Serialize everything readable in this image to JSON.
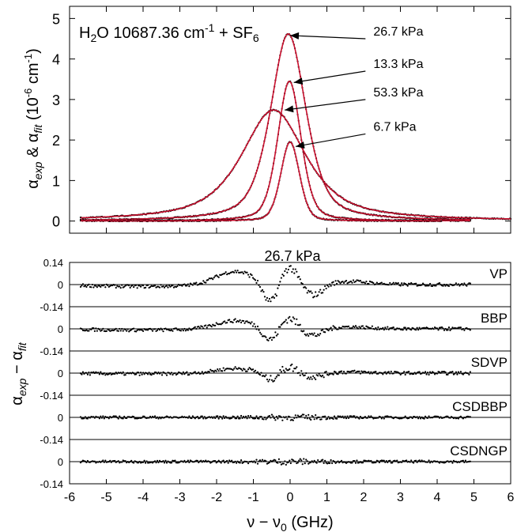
{
  "chart_data": [
    {
      "type": "line",
      "title": "",
      "annotation": {
        "prefix": "H",
        "sub1": "2",
        "mid": "O  10687.36 cm",
        "sup": "-1",
        "plus": " + SF",
        "sub2": "6"
      },
      "ylabel": {
        "a": "α",
        "exp": "exp",
        "amp": " & ",
        "fit": "fit",
        "unit_open": "  (10",
        "unit_sup": "-6",
        "unit_mid": " cm",
        "unit_sup2": "-1",
        "unit_close": ")"
      },
      "xlim": [
        -6,
        6
      ],
      "ylim": [
        -0.3,
        5.3
      ],
      "yticks": [
        0,
        1,
        2,
        3,
        4,
        5
      ],
      "series": [
        {
          "name": "26.7 kPa",
          "center": -0.05,
          "peak": 4.62,
          "fwhm": 1.15,
          "eta": 0.55,
          "x_range": [
            -5.7,
            4.9
          ]
        },
        {
          "name": "13.3 kPa",
          "center": -0.02,
          "peak": 3.45,
          "fwhm": 0.75,
          "eta": 0.35,
          "x_range": [
            -5.7,
            4.9
          ]
        },
        {
          "name": "53.3 kPa",
          "center": -0.45,
          "peak": 2.74,
          "fwhm": 2.1,
          "eta": 0.75,
          "x_range": [
            -5.7,
            6.0
          ]
        },
        {
          "name": "6.7 kPa",
          "center": 0.0,
          "peak": 1.95,
          "fwhm": 0.6,
          "eta": 0.25,
          "x_range": [
            -4.9,
            4.1
          ]
        }
      ],
      "arrow_labels": [
        {
          "text": "26.7 kPa",
          "from": [
            2.05,
            4.5
          ],
          "to": [
            0.0,
            4.58
          ]
        },
        {
          "text": "13.3 kPa",
          "from": [
            2.05,
            3.7
          ],
          "to": [
            0.1,
            3.42
          ]
        },
        {
          "text": "53.3 kPa",
          "from": [
            2.05,
            3.0
          ],
          "to": [
            -0.15,
            2.74
          ]
        },
        {
          "text": "6.7 kPa",
          "from": [
            2.05,
            2.15
          ],
          "to": [
            0.15,
            1.84
          ]
        }
      ]
    },
    {
      "type": "scatter",
      "title": "26.7 kPa",
      "ylabel": {
        "a": "α",
        "exp": "exp",
        "minus": " − α",
        "fit": "fit"
      },
      "xlabel": {
        "nu": "ν − ν",
        "sub": "0",
        "unit": "  (GHz)"
      },
      "xlim": [
        -6,
        6
      ],
      "xticks": [
        -6,
        -5,
        -4,
        -3,
        -2,
        -1,
        0,
        1,
        2,
        3,
        4,
        5,
        6
      ],
      "ylim": [
        -0.14,
        0.14
      ],
      "yticks": [
        -0.14,
        0,
        0.14
      ],
      "x_range": [
        -5.7,
        4.9
      ],
      "residual_panels": [
        {
          "name": "VP",
          "amplitude": 1.0,
          "noise": 0.01
        },
        {
          "name": "BBP",
          "amplitude": 0.62,
          "noise": 0.01
        },
        {
          "name": "SDVP",
          "amplitude": 0.35,
          "noise": 0.01
        },
        {
          "name": "CSDBBP",
          "amplitude": 0.0,
          "noise": 0.008
        },
        {
          "name": "CSDNGP",
          "amplitude": 0.0,
          "noise": 0.008
        }
      ]
    }
  ]
}
